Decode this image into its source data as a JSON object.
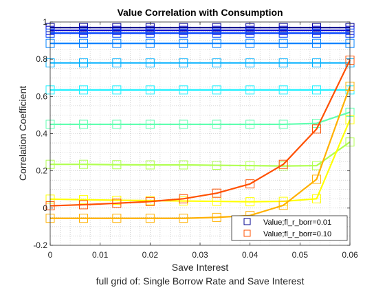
{
  "chart_data": {
    "type": "line",
    "title": "Value Correlation with Consumption",
    "xlabel": "Save Interest",
    "ylabel": "Correlation Coefficient",
    "caption": "full grid of: Single Borrow Rate and Save Interest",
    "xlim": [
      0,
      0.06
    ],
    "ylim": [
      -0.2,
      1
    ],
    "xticks": [
      0,
      0.01,
      0.02,
      0.03,
      0.04,
      0.05,
      0.06
    ],
    "xtick_labels": [
      "0",
      "0.01",
      "0.02",
      "0.03",
      "0.04",
      "0.05",
      "0.06"
    ],
    "yticks": [
      -0.2,
      0,
      0.2,
      0.4,
      0.6,
      0.8,
      1
    ],
    "ytick_labels": [
      "-0.2",
      "0",
      "0.2",
      "0.4",
      "0.6",
      "0.8",
      "1"
    ],
    "grid": "minor-dotted",
    "legend_position": "bottom-right",
    "x": [
      0,
      0.00667,
      0.01333,
      0.02,
      0.02667,
      0.03333,
      0.04,
      0.04667,
      0.05333,
      0.06
    ],
    "series": [
      {
        "name": "",
        "color": "#00008f",
        "values": [
          0.97,
          0.97,
          0.97,
          0.97,
          0.97,
          0.97,
          0.97,
          0.97,
          0.97,
          0.97
        ]
      },
      {
        "name": "",
        "color": "#0000cf",
        "values": [
          0.955,
          0.955,
          0.955,
          0.955,
          0.955,
          0.955,
          0.955,
          0.955,
          0.955,
          0.955
        ]
      },
      {
        "name": "",
        "color": "#0040ff",
        "values": [
          0.94,
          0.94,
          0.94,
          0.94,
          0.94,
          0.94,
          0.94,
          0.94,
          0.94,
          0.94
        ]
      },
      {
        "name": "",
        "color": "#0080ff",
        "values": [
          0.885,
          0.885,
          0.885,
          0.885,
          0.885,
          0.885,
          0.885,
          0.885,
          0.885,
          0.885
        ]
      },
      {
        "name": "",
        "color": "#00b0ff",
        "values": [
          0.78,
          0.78,
          0.78,
          0.78,
          0.78,
          0.78,
          0.78,
          0.78,
          0.78,
          0.78
        ]
      },
      {
        "name": "",
        "color": "#20f0ff",
        "values": [
          0.635,
          0.635,
          0.635,
          0.635,
          0.635,
          0.635,
          0.635,
          0.635,
          0.635,
          0.635
        ]
      },
      {
        "name": "",
        "color": "#60ffb0",
        "values": [
          0.45,
          0.45,
          0.45,
          0.45,
          0.45,
          0.45,
          0.45,
          0.45,
          0.455,
          0.515
        ]
      },
      {
        "name": "",
        "color": "#b0ff50",
        "values": [
          0.235,
          0.235,
          0.233,
          0.232,
          0.232,
          0.23,
          0.228,
          0.226,
          0.228,
          0.355
        ]
      },
      {
        "name": "",
        "color": "#ffff00",
        "values": [
          0.048,
          0.045,
          0.042,
          0.04,
          0.038,
          0.036,
          0.034,
          0.036,
          0.05,
          0.475
        ]
      },
      {
        "name": "",
        "color": "#ffb000",
        "values": [
          -0.055,
          -0.055,
          -0.055,
          -0.055,
          -0.055,
          -0.05,
          -0.04,
          0.015,
          0.155,
          0.655
        ]
      },
      {
        "name": "",
        "color": "#ff5000",
        "values": [
          0.012,
          0.018,
          0.026,
          0.035,
          0.05,
          0.08,
          0.13,
          0.235,
          0.425,
          0.795
        ]
      }
    ],
    "legend": [
      {
        "label": "Value;fl_r_borr=0.01",
        "color": "#00008f"
      },
      {
        "label": "Value;fl_r_borr=0.10",
        "color": "#ff5000"
      }
    ]
  }
}
